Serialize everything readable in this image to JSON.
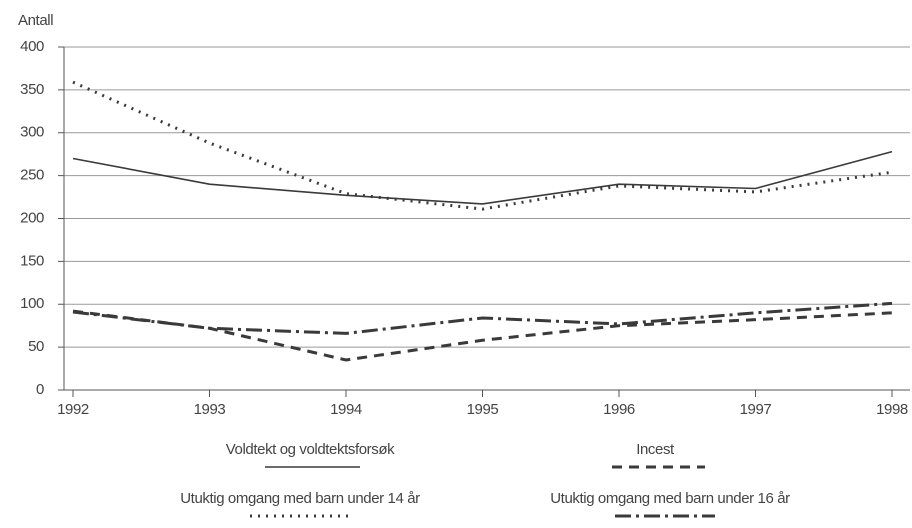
{
  "chart_data": {
    "type": "line",
    "y_label": "Antall",
    "categories": [
      "1992",
      "1993",
      "1994",
      "1995",
      "1996",
      "1997",
      "1998"
    ],
    "ylim": [
      0,
      400
    ],
    "yticks": [
      0,
      50,
      100,
      150,
      200,
      250,
      300,
      350,
      400
    ],
    "grid": true,
    "series": [
      {
        "name": "Voldtekt og voldtektsforsøk",
        "color": "#3a3a3a",
        "style": "solid",
        "values": [
          270,
          240,
          227,
          217,
          240,
          235,
          278
        ]
      },
      {
        "name": "Incest",
        "color": "#3a3a3a",
        "style": "dashed",
        "values": [
          92,
          72,
          35,
          58,
          75,
          82,
          90
        ]
      },
      {
        "name": "Utuktig omgang med barn under 14 år",
        "color": "#3a3a3a",
        "style": "dotted",
        "values": [
          359,
          288,
          229,
          211,
          238,
          231,
          254
        ]
      },
      {
        "name": "Utuktig omgang med barn under 16 år",
        "color": "#3a3a3a",
        "style": "dashdot",
        "values": [
          91,
          72,
          66,
          84,
          77,
          90,
          101
        ]
      }
    ]
  }
}
